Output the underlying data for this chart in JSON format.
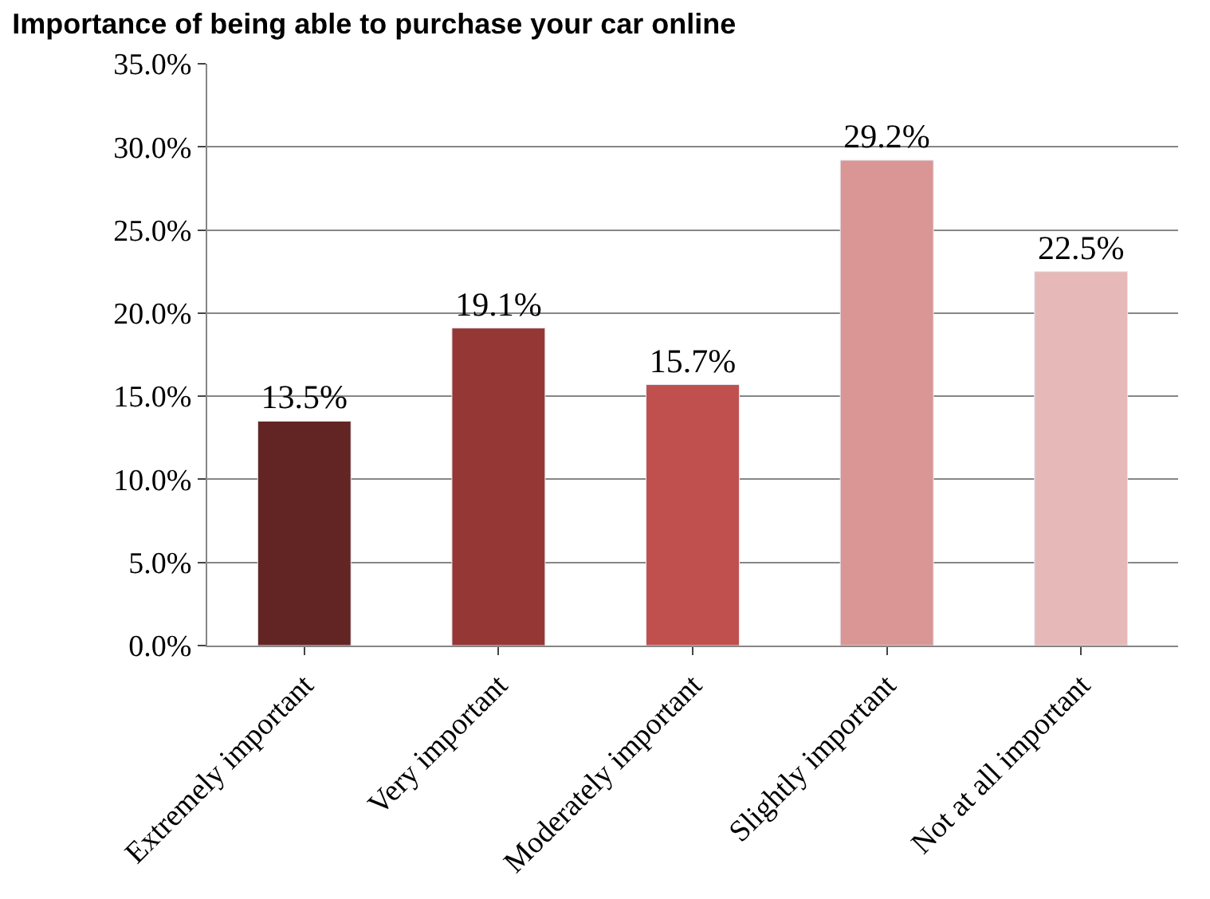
{
  "chart_data": {
    "type": "bar",
    "title": "Importance of being able to purchase your car online",
    "categories": [
      "Extremely important",
      "Very important",
      "Moderately important",
      "Slightly important",
      "Not at all important"
    ],
    "values": [
      13.5,
      19.1,
      15.7,
      29.2,
      22.5
    ],
    "colors": [
      "#632523",
      "#953735",
      "#c0504d",
      "#d99694",
      "#e6b9b8"
    ],
    "value_labels": [
      "13.5%",
      "19.1%",
      "15.7%",
      "29.2%",
      "22.5%"
    ],
    "ylim": [
      0,
      35
    ],
    "yticks": [
      {
        "value": 0,
        "label": "0.0%"
      },
      {
        "value": 5,
        "label": "5.0%"
      },
      {
        "value": 10,
        "label": "10.0%"
      },
      {
        "value": 15,
        "label": "15.0%"
      },
      {
        "value": 20,
        "label": "20.0%"
      },
      {
        "value": 25,
        "label": "25.0%"
      },
      {
        "value": 30,
        "label": "30.0%"
      },
      {
        "value": 35,
        "label": "35.0%"
      }
    ],
    "grid": "y",
    "legend": false
  }
}
